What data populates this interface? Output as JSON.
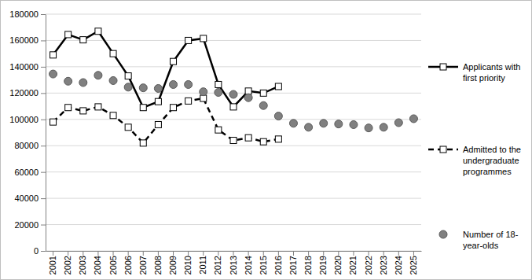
{
  "chart_data": {
    "type": "line",
    "categories": [
      "2001",
      "2002",
      "2003",
      "2004",
      "2005",
      "2006",
      "2007",
      "2008",
      "2009",
      "2010",
      "2011",
      "2012",
      "2013",
      "2014",
      "2015",
      "2016",
      "2017",
      "2018",
      "2019",
      "2020",
      "2021",
      "2022",
      "2023",
      "2024",
      "2025"
    ],
    "ylim": [
      0,
      180000
    ],
    "yticks": [
      0,
      20000,
      40000,
      60000,
      80000,
      100000,
      120000,
      140000,
      160000,
      180000
    ],
    "grid": true,
    "legend": "right",
    "series": [
      {
        "name": "Applicants with first priority",
        "type": "line",
        "color": "#000000",
        "marker": "square",
        "line_style": "solid",
        "values": [
          149000,
          164500,
          160500,
          167000,
          150000,
          133000,
          109000,
          113500,
          144000,
          160000,
          161500,
          126500,
          109500,
          121500,
          120000,
          125000,
          null,
          null,
          null,
          null,
          null,
          null,
          null,
          null,
          null
        ]
      },
      {
        "name": "Admitted to the undergraduate programmes",
        "type": "line",
        "color": "#000000",
        "marker": "square",
        "line_style": "dashed",
        "values": [
          98000,
          109000,
          106500,
          109500,
          103000,
          94000,
          82000,
          96000,
          109000,
          114000,
          116000,
          92000,
          84000,
          86000,
          83000,
          85000,
          null,
          null,
          null,
          null,
          null,
          null,
          null,
          null,
          null
        ]
      },
      {
        "name": "Number of 18-year-olds",
        "type": "scatter",
        "color": "#808080",
        "marker": "circle",
        "values": [
          134500,
          129000,
          128000,
          133500,
          129500,
          124500,
          124000,
          123500,
          126500,
          126500,
          121000,
          120500,
          119000,
          116500,
          110500,
          102500,
          97000,
          94000,
          97000,
          96500,
          96000,
          93500,
          94000,
          97500,
          100500
        ]
      }
    ]
  }
}
